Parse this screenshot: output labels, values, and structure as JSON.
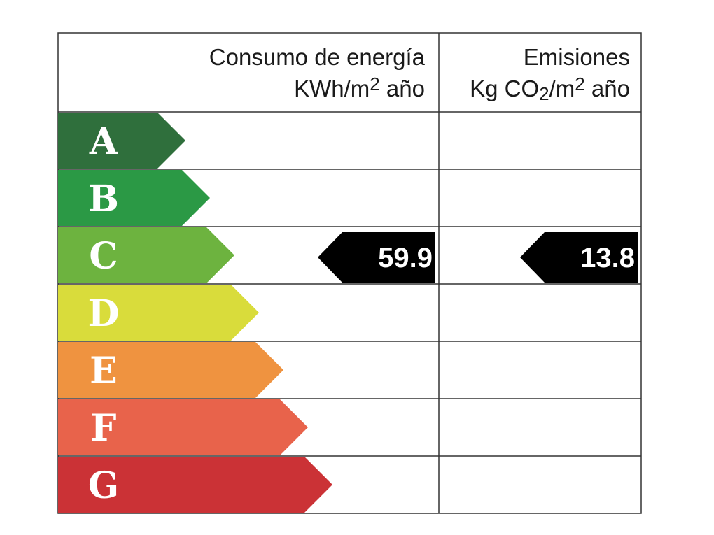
{
  "header": {
    "energy": {
      "line1": "Consumo de energía",
      "line2": [
        {
          "text": "KWh/m"
        },
        {
          "text": "2",
          "script": "super"
        },
        {
          "text": " año"
        }
      ]
    },
    "emissions": {
      "line1": "Emisiones",
      "line2": [
        {
          "text": "Kg CO"
        },
        {
          "text": "2",
          "script": "sub"
        },
        {
          "text": "/m"
        },
        {
          "text": "2",
          "script": "super"
        },
        {
          "text": " año"
        }
      ]
    }
  },
  "grades": [
    {
      "label": "A",
      "color": "#2f6f3c"
    },
    {
      "label": "B",
      "color": "#2b9945"
    },
    {
      "label": "C",
      "color": "#6db33f"
    },
    {
      "label": "D",
      "color": "#d9dc3b"
    },
    {
      "label": "E",
      "color": "#ef9340"
    },
    {
      "label": "F",
      "color": "#e8634b"
    },
    {
      "label": "G",
      "color": "#cb3236"
    }
  ],
  "ratings": {
    "energy": {
      "grade": "C",
      "value": 59.9
    },
    "emissions": {
      "grade": "C",
      "value": 13.8
    }
  }
}
